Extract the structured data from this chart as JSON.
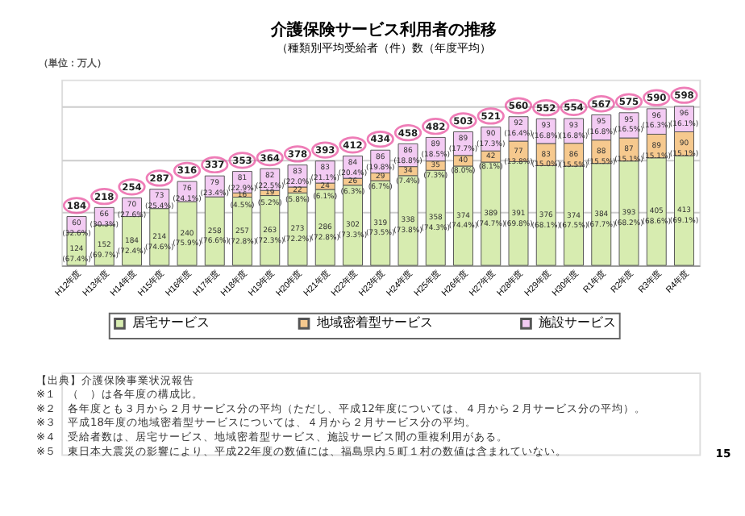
{
  "chart_data": {
    "type": "bar",
    "stacked": true,
    "title": "介護保険サービス利用者の推移",
    "subtitle": "（種類別平均受給者（件）数（年度平均）",
    "ylabel": "（単位：万人）",
    "categories": [
      "H12年度",
      "H13年度",
      "H14年度",
      "H15年度",
      "H16年度",
      "H17年度",
      "H18年度",
      "H19年度",
      "H20年度",
      "H21年度",
      "H22年度",
      "H23年度",
      "H24年度",
      "H25年度",
      "H26年度",
      "H27年度",
      "H28年度",
      "H29年度",
      "H30年度",
      "R1年度",
      "R2年度",
      "R3年度",
      "R4年度"
    ],
    "series": [
      {
        "name": "居宅サービス",
        "color": "#d7ecb0",
        "values": [
          124,
          152,
          184,
          214,
          240,
          258,
          257,
          263,
          273,
          286,
          302,
          319,
          338,
          358,
          374,
          389,
          391,
          376,
          374,
          384,
          393,
          405,
          413
        ],
        "value_labels": [
          "124 (67.4%)",
          "152 (69.7%)",
          "184 (72.4%)",
          "214 (74.6%)",
          "240 (75.9%)",
          "258 (76.6%)",
          "257 (72.8%)",
          "263 (72.3%)",
          "273 (72.2%)",
          "286 (72.8%)",
          "302 (73.3%)",
          "319 (73.5%)",
          "338 (73.8%)",
          "358 (74.3%)",
          "374 (74.4%)",
          "389 (74.7%)",
          "391 (69.8%)",
          "376 (68.1%)",
          "374 (67.5%)",
          "384 (67.7%)",
          "393 (68.2%)",
          "405 (68.6%)",
          "413 (69.1%)"
        ]
      },
      {
        "name": "地域密着型サービス",
        "color": "#f6c98e",
        "values": [
          null,
          null,
          null,
          null,
          null,
          null,
          16,
          19,
          22,
          24,
          26,
          29,
          34,
          35,
          40,
          42,
          77,
          83,
          86,
          88,
          87,
          89,
          90
        ],
        "value_labels": [
          null,
          null,
          null,
          null,
          null,
          null,
          "16 (4.5%)",
          "19 (5.2%)",
          "22 (5.8%)",
          "24 (6.1%)",
          "26 (6.3%)",
          "29 (6.7%)",
          "34 (7.4%)",
          "35 (7.3%)",
          "40 (8.0%)",
          "42 (8.1%)",
          "77 (13.8%)",
          "83 (15.0%)",
          "86 (15.5%)",
          "88 (15.5%)",
          "87 (15.1%)",
          "89 (15.1%)",
          "90 (15.1%)"
        ]
      },
      {
        "name": "施設サービス",
        "color": "#f3cbf3",
        "values": [
          60,
          66,
          70,
          73,
          76,
          79,
          81,
          82,
          83,
          83,
          84,
          86,
          86,
          89,
          89,
          90,
          92,
          93,
          93,
          95,
          95,
          96,
          96
        ],
        "value_labels": [
          "60 (32.6%)",
          "66 (30.3%)",
          "70 (27.6%)",
          "73 (25.4%)",
          "76 (24.1%)",
          "79 (23.4%)",
          "81 (22.9%)",
          "82 (22.5%)",
          "83 (22.0%)",
          "83 (21.1%)",
          "84 (20.4%)",
          "86 (19.8%)",
          "86 (18.8%)",
          "89 (18.5%)",
          "89 (17.7%)",
          "90 (17.3%)",
          "92 (16.4%)",
          "93 (16.8%)",
          "93 (16.8%)",
          "95 (16.8%)",
          "95 (16.5%)",
          "96 (16.3%)",
          "96 (16.1%)"
        ]
      }
    ],
    "totals": [
      "184",
      "218",
      "254",
      "287",
      "316",
      "337",
      "353",
      "364",
      "378",
      "393",
      "412",
      "434",
      "458",
      "482",
      "503",
      "521",
      "560",
      "552",
      "554",
      "567",
      "575",
      "590",
      "598"
    ],
    "ylim": [
      0,
      700
    ],
    "tick_labels": "x",
    "grid": "y",
    "legend": "bottom",
    "annotations": [
      "【出典】介護保険事業状況報告",
      "※１　（　）は各年度の構成比。",
      "※２　各年度とも３月から２月サービス分の平均（ただし、平成12年度については、４月から２月サービス分の平均）。",
      "※３　平成18年度の地域密着型サービスについては、４月から２月サービス分の平均。",
      "※４　受給者数は、居宅サービス、地域密着型サービス、施設サービス間の重複利用がある。",
      "※５　東日本大震災の影響により、平成22年度の数値には、福島県内５町１村の数値は含まれていない。",
      "15"
    ]
  }
}
